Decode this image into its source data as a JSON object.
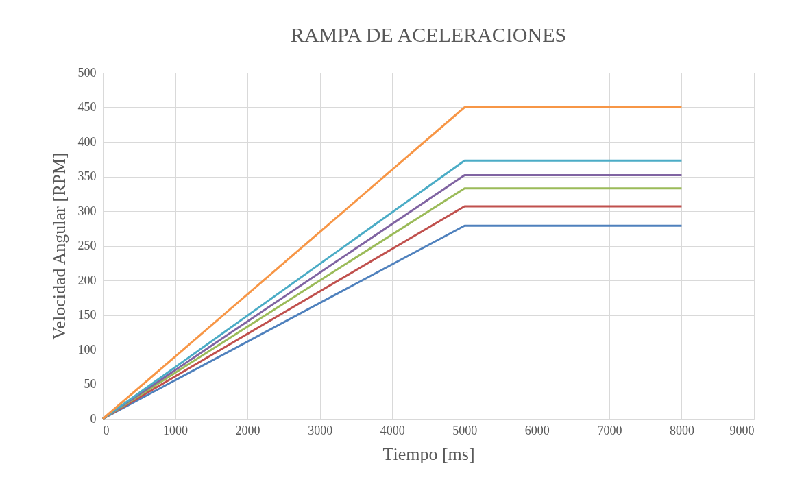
{
  "chart_data": {
    "type": "line",
    "title": "RAMPA DE ACELERACIONES",
    "xlabel": "Tiempo [ms]",
    "ylabel": "Velocidad Angular [RPM]",
    "x": [
      0,
      5000,
      8000
    ],
    "series": [
      {
        "color": "#4f81bd",
        "values": [
          0,
          279,
          279
        ]
      },
      {
        "color": "#c0504d",
        "values": [
          0,
          307,
          307
        ]
      },
      {
        "color": "#9bbb59",
        "values": [
          0,
          333,
          333
        ]
      },
      {
        "color": "#8064a2",
        "values": [
          0,
          352,
          352
        ]
      },
      {
        "color": "#4bacc6",
        "values": [
          0,
          373,
          373
        ]
      },
      {
        "color": "#f79646",
        "values": [
          0,
          450,
          450
        ]
      }
    ],
    "xlim": [
      0,
      9000
    ],
    "xticks": [
      0,
      1000,
      2000,
      3000,
      4000,
      5000,
      6000,
      7000,
      8000,
      9000
    ],
    "ylim": [
      0,
      500
    ],
    "yticks": [
      0,
      50,
      100,
      150,
      200,
      250,
      300,
      350,
      400,
      450,
      500
    ],
    "grid": true,
    "legend": false,
    "marker": "none",
    "line_style": "solid"
  }
}
